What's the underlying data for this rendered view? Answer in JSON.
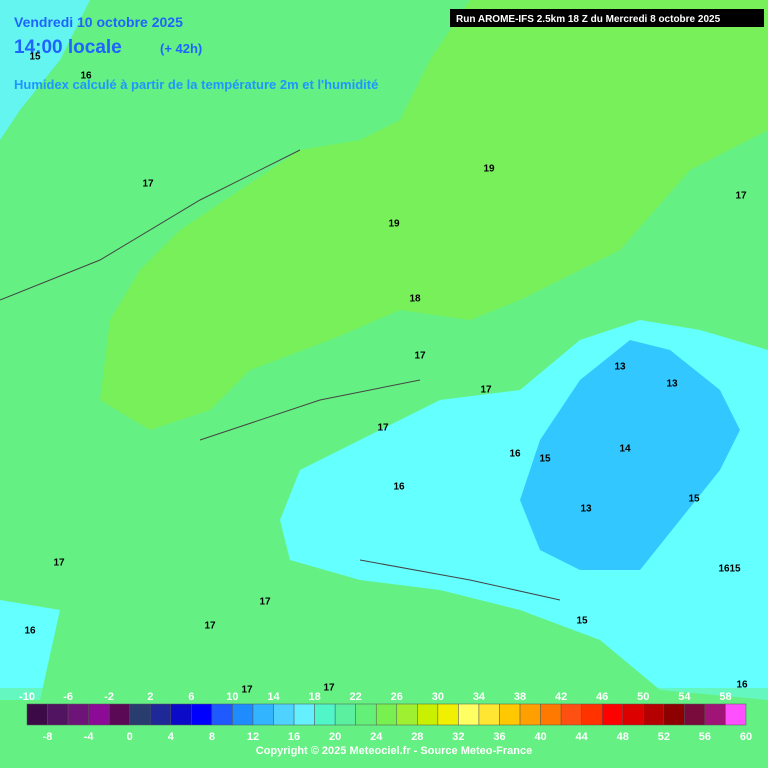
{
  "header": {
    "date": "Vendredi 10 octobre 2025",
    "time": "14:00 locale",
    "lead": "(+ 42h)",
    "parameter": "Humidex calculé à partir de la température 2m et l'humidité",
    "run": "Run AROME-IFS 2.5km 18 Z du Mercredi 8 octobre 2025"
  },
  "contour_labels": [
    15,
    16,
    17,
    19,
    17,
    19,
    18,
    17,
    13,
    13,
    17,
    17,
    14,
    16,
    15,
    16,
    15,
    13,
    17,
    16,
    15,
    17,
    15,
    17,
    16,
    17,
    17,
    16
  ],
  "colorbar": {
    "ticks_top": [
      -10,
      -6,
      -2,
      2,
      6,
      10,
      14,
      18,
      22,
      26,
      30,
      34,
      38,
      42,
      46,
      50,
      54,
      58
    ],
    "ticks_bottom": [
      -8,
      -4,
      0,
      4,
      8,
      12,
      16,
      20,
      24,
      28,
      32,
      36,
      40,
      44,
      48,
      52,
      56,
      60
    ],
    "range": [
      -10,
      60
    ],
    "colors": [
      "#3c0a46",
      "#501460",
      "#6e1478",
      "#8c0a96",
      "#5a0a55",
      "#283c6e",
      "#1e2896",
      "#0a0ac8",
      "#0000ff",
      "#1e5aff",
      "#1e8cff",
      "#32b4ff",
      "#50d2ff",
      "#64f0ff",
      "#50f5c8",
      "#5af0a0",
      "#64f078",
      "#78f050",
      "#a0f032",
      "#c8f000",
      "#f0f000",
      "#ffff64",
      "#ffe632",
      "#ffc800",
      "#ffa000",
      "#ff7800",
      "#ff5014",
      "#ff3200",
      "#ff0000",
      "#dc0000",
      "#b40000",
      "#8c0000",
      "#780a3c",
      "#a01478",
      "#ff50ff"
    ]
  },
  "copyright": "Copyright © 2025 Meteociel.fr - Source Meteo-France"
}
